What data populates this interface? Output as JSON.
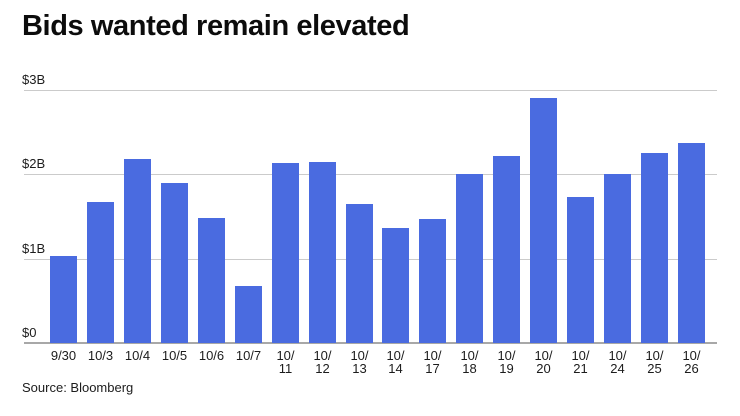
{
  "header": {
    "title": "Bids wanted remain elevated"
  },
  "footer": {
    "source": "Source: Bloomberg"
  },
  "colors": {
    "bar": "#4a6be0",
    "gridline": "#cbcbcb",
    "baseline": "#a8a8a8",
    "title_text": "#0c0c0c",
    "axis_text": "#1c1c1c"
  },
  "chart_data": {
    "type": "bar",
    "title": "Bids wanted remain elevated",
    "categories": [
      "9/30",
      "10/3",
      "10/4",
      "10/5",
      "10/6",
      "10/7",
      "10/11",
      "10/12",
      "10/13",
      "10/14",
      "10/17",
      "10/18",
      "10/19",
      "10/20",
      "10/21",
      "10/24",
      "10/25",
      "10/26"
    ],
    "values": [
      1.03,
      1.67,
      2.18,
      1.9,
      1.48,
      0.68,
      2.13,
      2.15,
      1.65,
      1.36,
      1.47,
      2.0,
      2.22,
      2.91,
      1.73,
      2.0,
      2.25,
      2.37
    ],
    "values_unit": "$B",
    "xlabel": "",
    "ylabel": "",
    "ylim": [
      0,
      3
    ],
    "yticks": [
      {
        "value": 0,
        "label": "$0"
      },
      {
        "value": 1,
        "label": "$1B"
      },
      {
        "value": 2,
        "label": "$2B"
      },
      {
        "value": 3,
        "label": "$3B"
      }
    ],
    "grid": "horizontal",
    "legend": "none",
    "source": "Source: Bloomberg"
  }
}
